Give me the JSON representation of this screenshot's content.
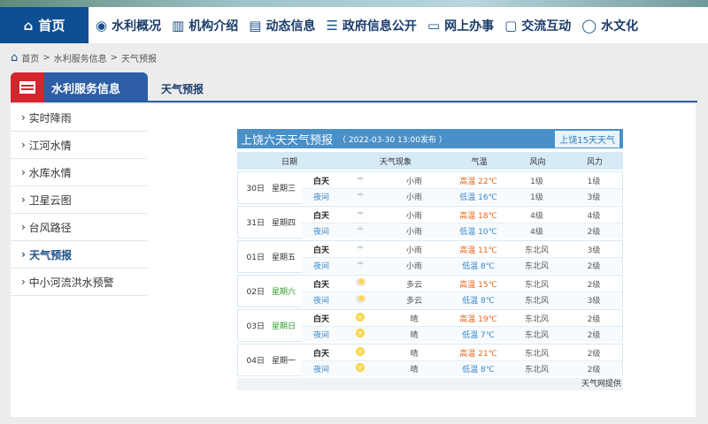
{
  "nav": {
    "home": "首页",
    "items": [
      {
        "icon": "water-drop-person-icon",
        "label": "水利概况"
      },
      {
        "icon": "building-icon",
        "label": "机构介绍"
      },
      {
        "icon": "document-icon",
        "label": "动态信息"
      },
      {
        "icon": "government-icon",
        "label": "政府信息公开"
      },
      {
        "icon": "monitor-icon",
        "label": "网上办事"
      },
      {
        "icon": "chat-icon",
        "label": "交流互动"
      },
      {
        "icon": "drop-icon",
        "label": "水文化"
      }
    ]
  },
  "breadcrumb": [
    "首页",
    "水利服务信息",
    "天气预报"
  ],
  "sidebar": {
    "title": "水利服务信息",
    "items": [
      "实时降雨",
      "江河水情",
      "水库水情",
      "卫星云图",
      "台风路径",
      "天气预报",
      "中小河流洪水预警"
    ],
    "active": "天气预报"
  },
  "tab": "天气预报",
  "weather": {
    "title": "上饶六天天气预报",
    "published": "（ 2022-03-30 13:00发布 ）",
    "link": "上饶15天天气",
    "headers": [
      "日期",
      "天气现象",
      "气温",
      "风向",
      "风力"
    ],
    "day_label": "白天",
    "night_label": "夜间",
    "high_label": "高温",
    "low_label": "低温",
    "days": [
      {
        "date": "30日",
        "weekday": "星期三",
        "weekend": false,
        "day": {
          "icon": "rain",
          "desc": "小雨",
          "temp": "22℃",
          "dir": "1级",
          "power": "1级"
        },
        "night": {
          "icon": "rain",
          "desc": "小雨",
          "temp": "16℃",
          "dir": "1级",
          "power": "3级"
        }
      },
      {
        "date": "31日",
        "weekday": "星期四",
        "weekend": false,
        "day": {
          "icon": "rain",
          "desc": "小雨",
          "temp": "18℃",
          "dir": "4级",
          "power": "4级"
        },
        "night": {
          "icon": "rain",
          "desc": "小雨",
          "temp": "10℃",
          "dir": "4级",
          "power": "2级"
        }
      },
      {
        "date": "01日",
        "weekday": "星期五",
        "weekend": false,
        "day": {
          "icon": "rain",
          "desc": "小雨",
          "temp": "11℃",
          "dir": "东北风",
          "power": "3级"
        },
        "night": {
          "icon": "rain",
          "desc": "小雨",
          "temp": "8℃",
          "dir": "东北风",
          "power": "2级"
        }
      },
      {
        "date": "02日",
        "weekday": "星期六",
        "weekend": true,
        "day": {
          "icon": "cloudy",
          "desc": "多云",
          "temp": "15℃",
          "dir": "东北风",
          "power": "2级"
        },
        "night": {
          "icon": "cloudy",
          "desc": "多云",
          "temp": "8℃",
          "dir": "东北风",
          "power": "3级"
        }
      },
      {
        "date": "03日",
        "weekday": "星期日",
        "weekend": true,
        "day": {
          "icon": "sunny",
          "desc": "晴",
          "temp": "19℃",
          "dir": "东北风",
          "power": "2级"
        },
        "night": {
          "icon": "sunny",
          "desc": "晴",
          "temp": "7℃",
          "dir": "东北风",
          "power": "2级"
        }
      },
      {
        "date": "04日",
        "weekday": "星期一",
        "weekend": false,
        "day": {
          "icon": "sunny",
          "desc": "晴",
          "temp": "21℃",
          "dir": "东北风",
          "power": "2级"
        },
        "night": {
          "icon": "sunny",
          "desc": "晴",
          "temp": "8℃",
          "dir": "东北风",
          "power": "2级"
        }
      }
    ],
    "footer": "天气网提供"
  },
  "colors": {
    "nav_home": "#0c4f92",
    "sidebar_head": "#2d5ea6",
    "accent_red": "#d3262e",
    "high": "#e8661c",
    "low": "#3a86c8",
    "weekend": "#2a9a2a"
  }
}
